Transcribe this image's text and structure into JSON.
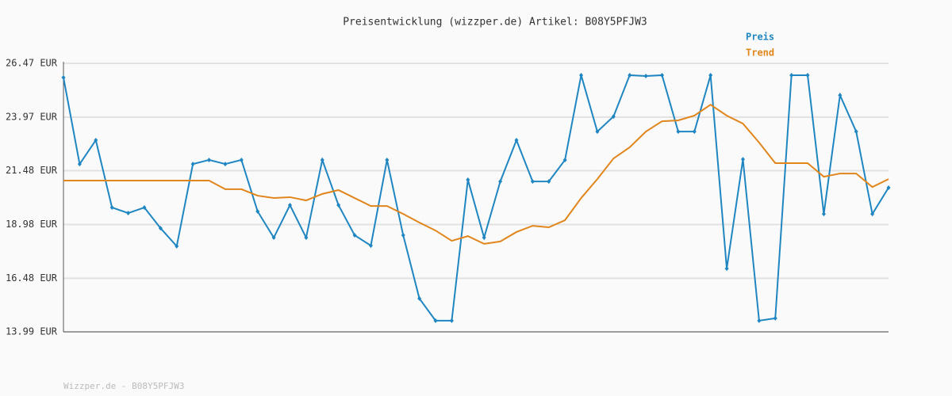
{
  "chart_data": {
    "type": "line",
    "title": "Preisentwicklung (wizzper.de) Artikel: B08Y5PFJW3",
    "categories": [
      null,
      null,
      null,
      null,
      null,
      null,
      null,
      null,
      null,
      null,
      null,
      null,
      null,
      null,
      null,
      null,
      null,
      null,
      null,
      null,
      null,
      null,
      null,
      null,
      null,
      null,
      null,
      null,
      null,
      null,
      null,
      null,
      null,
      null,
      null,
      null,
      null,
      null,
      null,
      null,
      null,
      null,
      null,
      null,
      null,
      null,
      null,
      null,
      null,
      null,
      null,
      null
    ],
    "series": [
      {
        "name": "Preis",
        "color": "#1f86c1",
        "markers": true,
        "values": [
          25.81,
          21.79,
          22.9,
          19.77,
          19.51,
          19.77,
          18.81,
          17.97,
          21.79,
          21.98,
          21.79,
          21.98,
          19.59,
          18.37,
          19.88,
          18.37,
          21.98,
          19.88,
          18.48,
          18.0,
          21.98,
          18.48,
          15.54,
          14.51,
          14.51,
          21.06,
          18.37,
          20.98,
          22.9,
          20.98,
          20.98,
          21.98,
          25.92,
          23.3,
          24.0,
          25.92,
          25.88,
          25.92,
          23.3,
          23.3,
          25.92,
          16.93,
          22.01,
          14.51,
          14.62,
          25.92,
          25.92,
          19.47,
          24.99,
          23.3,
          19.47,
          20.69
        ]
      },
      {
        "name": "Trend",
        "color": "#e0861c",
        "markers": false,
        "values": [
          21.02,
          21.02,
          21.02,
          21.02,
          21.02,
          21.02,
          21.02,
          21.02,
          21.02,
          21.02,
          20.62,
          20.62,
          20.32,
          20.21,
          20.25,
          20.1,
          20.4,
          20.58,
          20.21,
          19.84,
          19.84,
          19.47,
          19.07,
          18.7,
          18.22,
          18.44,
          18.08,
          18.19,
          18.63,
          18.92,
          18.85,
          19.18,
          20.21,
          21.09,
          22.05,
          22.57,
          23.3,
          23.78,
          23.82,
          24.04,
          24.55,
          24.04,
          23.67,
          22.79,
          21.83,
          21.83,
          21.83,
          21.2,
          21.35,
          21.35,
          20.72,
          21.09
        ]
      }
    ],
    "ylim": [
      13.99,
      26.47
    ],
    "yticks": [
      {
        "value": 13.99,
        "label": "13.99 EUR"
      },
      {
        "value": 16.48,
        "label": "16.48 EUR"
      },
      {
        "value": 18.98,
        "label": "18.98 EUR"
      },
      {
        "value": 21.48,
        "label": "21.48 EUR"
      },
      {
        "value": 23.97,
        "label": "23.97 EUR"
      },
      {
        "value": 26.47,
        "label": "26.47 EUR"
      }
    ],
    "grid": true,
    "legend": "top-right"
  },
  "footer": "Wizzper.de - B08Y5PFJW3"
}
